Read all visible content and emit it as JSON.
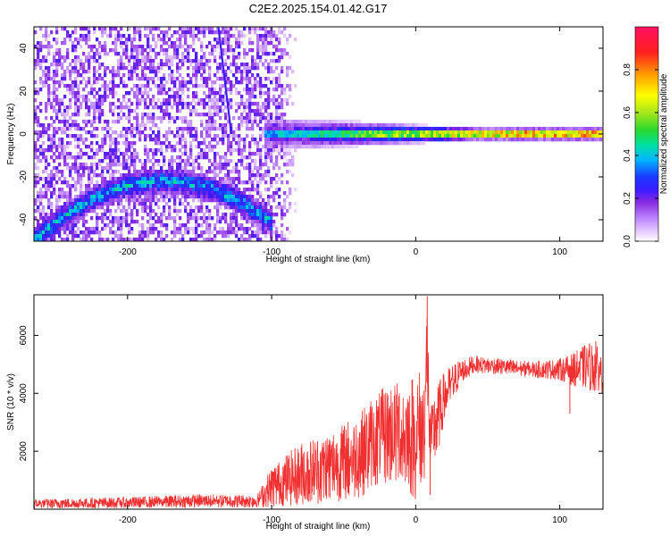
{
  "title": "C2E2.2025.154.01.42.G17",
  "chart_data": [
    {
      "type": "heatmap",
      "xlabel": "Height of straight line (km)",
      "ylabel": "Frequency (Hz)",
      "xlim": [
        -265,
        130
      ],
      "ylim": [
        -50,
        50
      ],
      "xticks": [
        -200,
        -100,
        0,
        100
      ],
      "yticks": [
        -40,
        -20,
        0,
        20,
        40
      ],
      "colorbar": {
        "label": "Normalized spectral amplitude",
        "range": [
          0,
          1
        ],
        "ticks": [
          0.0,
          0.2,
          0.4,
          0.6,
          0.8
        ],
        "colormap": [
          "#ffffff",
          "#e9d1ff",
          "#c08cff",
          "#8a2be2",
          "#6a00d8",
          "#1a3aff",
          "#00b7ff",
          "#00e0a0",
          "#2cd82c",
          "#a8e61a",
          "#ffff00",
          "#ff9900",
          "#ff2020",
          "#ff1060"
        ]
      },
      "features": {
        "central_line": {
          "x": [
            -105,
            130
          ],
          "frequency": 0,
          "peak_amplitude": 0.95,
          "note": "strong near x 50-130"
        },
        "lower_arc": {
          "x": [
            -265,
            -100
          ],
          "peak": {
            "x": -175,
            "frequency": -22
          },
          "ends": {
            "frequency": -50
          }
        },
        "steep_line": {
          "from": {
            "x": -137,
            "frequency": 50
          },
          "to": {
            "x": -128,
            "frequency": 0
          }
        },
        "noise_region": {
          "x": [
            -265,
            -95
          ],
          "frequency": [
            -50,
            50
          ]
        }
      }
    },
    {
      "type": "line",
      "xlabel": "Height of straight line (km)",
      "ylabel": "SNR (10 * v/v)",
      "xlim": [
        -265,
        130
      ],
      "ylim": [
        0,
        7400
      ],
      "xticks": [
        -200,
        -100,
        0,
        100
      ],
      "yticks": [
        2000,
        4000,
        6000
      ],
      "color": "#f03030",
      "envelope": {
        "x": [
          -265,
          -200,
          -150,
          -110,
          -100,
          -80,
          -60,
          -40,
          -30,
          -20,
          -10,
          0,
          5,
          8,
          10,
          15,
          20,
          30,
          40,
          60,
          80,
          100,
          110,
          120,
          130
        ],
        "min": [
          30,
          40,
          60,
          60,
          80,
          150,
          200,
          400,
          600,
          900,
          800,
          300,
          300,
          2600,
          1500,
          1800,
          3000,
          4200,
          4700,
          4650,
          4550,
          4450,
          4250,
          4100,
          4000
        ],
        "max": [
          350,
          420,
          520,
          500,
          1500,
          2300,
          2700,
          3300,
          3900,
          4300,
          4500,
          4700,
          5000,
          7400,
          3400,
          4300,
          4800,
          5150,
          5300,
          5200,
          5100,
          5200,
          5400,
          5800,
          5500
        ]
      },
      "spikes": [
        {
          "x": 8,
          "y": 7350
        },
        {
          "x": 10,
          "y": 500
        },
        {
          "x": 125,
          "y": 5800
        },
        {
          "x": 107,
          "y": 3300
        }
      ]
    }
  ]
}
